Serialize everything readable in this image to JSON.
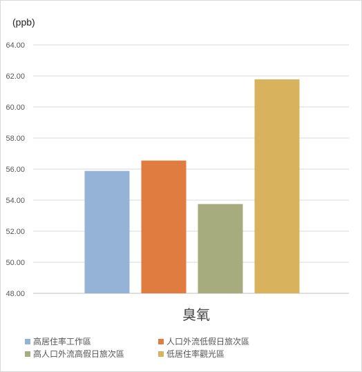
{
  "chart_data": {
    "type": "bar",
    "unit_label": "(ppb)",
    "categories": [
      "臭氧"
    ],
    "series": [
      {
        "name": "高居住率工作區",
        "color": "#95b3d7",
        "values": [
          55.88
        ]
      },
      {
        "name": "人口外流低假日旅次區",
        "color": "#e07c40",
        "values": [
          56.55
        ]
      },
      {
        "name": "高人口外流高假日旅次區",
        "color": "#a6ac7e",
        "values": [
          53.75
        ]
      },
      {
        "name": "低居住率觀光區",
        "color": "#d9b25d",
        "values": [
          61.78
        ]
      }
    ],
    "ylim": [
      48,
      64
    ],
    "yticks": [
      "48.00",
      "50.00",
      "52.00",
      "54.00",
      "56.00",
      "58.00",
      "60.00",
      "62.00",
      "64.00"
    ],
    "grid": true,
    "legend_position": "bottom"
  }
}
